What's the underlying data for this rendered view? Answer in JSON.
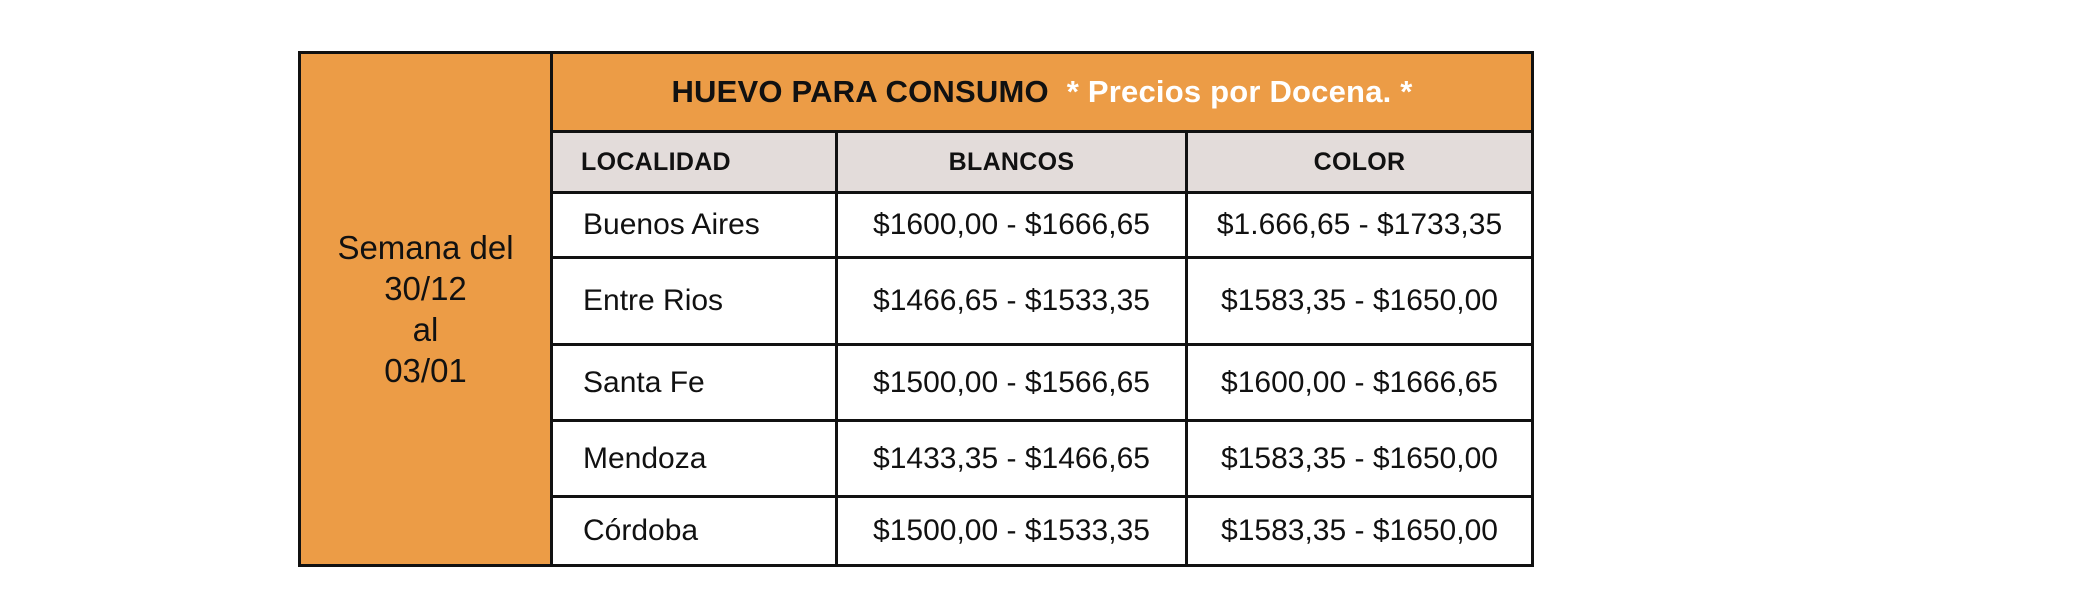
{
  "period": {
    "line1": "Semana del",
    "line2": "30/12",
    "line3": "al",
    "line4": "03/01"
  },
  "title": {
    "main": "HUEVO PARA CONSUMO",
    "note": "* Precios por Docena. *"
  },
  "columns": {
    "localidad": "LOCALIDAD",
    "blancos": "BLANCOS",
    "color": "COLOR"
  },
  "rows": [
    {
      "localidad": "Buenos Aires",
      "blancos": "$1600,00 - $1666,65",
      "color": "$1.666,65 - $1733,35"
    },
    {
      "localidad": "Entre Rios",
      "blancos": "$1466,65 - $1533,35",
      "color": "$1583,35 - $1650,00"
    },
    {
      "localidad": "Santa Fe",
      "blancos": "$1500,00 - $1566,65",
      "color": "$1600,00 - $1666,65"
    },
    {
      "localidad": "Mendoza",
      "blancos": "$1433,35 - $1466,65",
      "color": "$1583,35 - $1650,00"
    },
    {
      "localidad": "Córdoba",
      "blancos": "$1500,00 - $1533,35",
      "color": "$1583,35 - $1650,00"
    }
  ],
  "colors": {
    "orange": "#ec9c46",
    "header_gray": "#e3dcda",
    "border": "#111111",
    "note_text": "#ffffff"
  }
}
